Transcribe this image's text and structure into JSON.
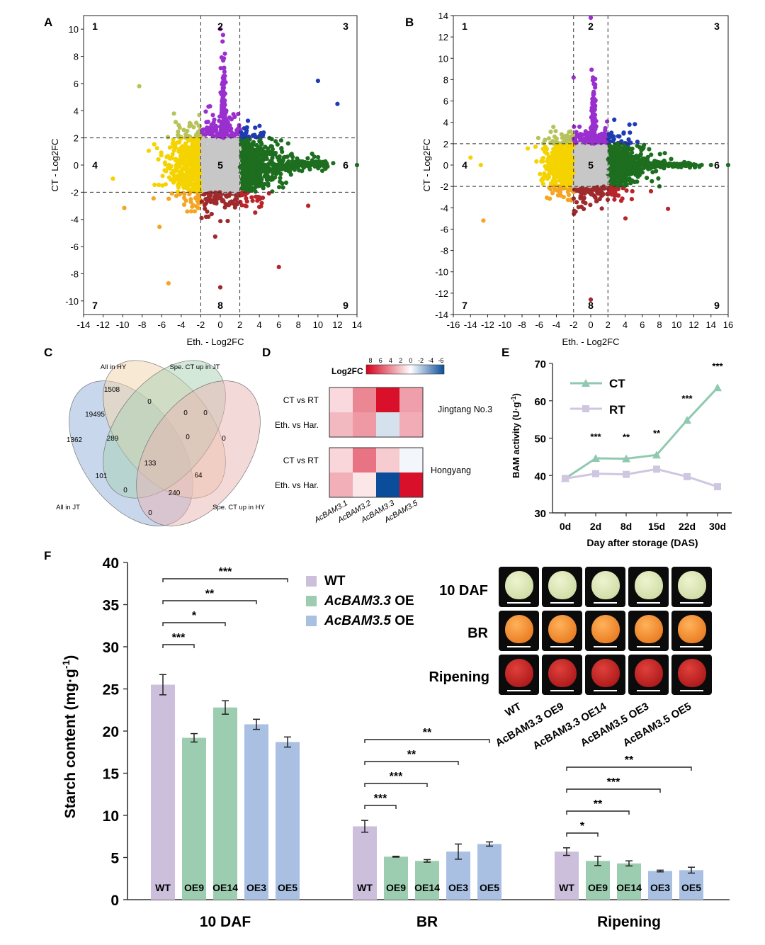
{
  "panel_labels": {
    "a": "A",
    "b": "B",
    "c": "C",
    "d": "D",
    "e": "E",
    "f": "F"
  },
  "scatter": {
    "xlabel": "Eth. - Log2FC",
    "ylabel": "CT - Log2FC",
    "quadrants": [
      "1",
      "2",
      "3",
      "4",
      "5",
      "6",
      "7",
      "8",
      "9"
    ],
    "A": {
      "xticks": [
        "-14",
        "-12",
        "-10",
        "-8",
        "-6",
        "-4",
        "-2",
        "0",
        "2",
        "4",
        "6",
        "8",
        "10",
        "12",
        "14"
      ],
      "yticks": [
        "10",
        "8",
        "6",
        "4",
        "2",
        "0",
        "-2",
        "-4",
        "-6",
        "-8",
        "-10"
      ]
    },
    "B": {
      "xticks": [
        "-16",
        "-14",
        "-12",
        "-10",
        "-8",
        "-6",
        "-4",
        "-2",
        "0",
        "2",
        "4",
        "6",
        "8",
        "10",
        "12",
        "14",
        "16"
      ],
      "yticks": [
        "14",
        "12",
        "10",
        "8",
        "6",
        "4",
        "2",
        "0",
        "-2",
        "-4",
        "-6",
        "-8",
        "-10",
        "-12",
        "-14"
      ]
    },
    "colors": {
      "q1": "#b7c35a",
      "q2": "#9a2fcf",
      "q3": "#1e3bb3",
      "q4": "#f5d300",
      "q5": "#c7c7c7",
      "q6": "#1d6e1f",
      "q7": "#f4a522",
      "q8": "#9e2a2c",
      "q9": "#b8252a"
    }
  },
  "venn": {
    "labels": {
      "hy": "All in HY",
      "jt_up": "Spe. CT up in JT",
      "jt": "All in JT",
      "hy_up": "Spe. CT up in HY"
    },
    "counts": [
      "1508",
      "0",
      "19495",
      "0",
      "0",
      "1362",
      "289",
      "0",
      "0",
      "133",
      "101",
      "64",
      "0",
      "240",
      "0"
    ],
    "colors": {
      "jt": "#9cb7dd",
      "hy": "#f3d7b0",
      "jt_up": "#a8d2b4",
      "hy_up": "#e9b3b3"
    }
  },
  "heatmap": {
    "legend_title": "Log2FC",
    "legend_ticks": [
      "8",
      "6",
      "4",
      "2",
      "0",
      "-2",
      "-4",
      "-6"
    ],
    "rows": [
      "CT vs RT",
      "Eth. vs Har.",
      "CT vs RT",
      "Eth. vs Har."
    ],
    "groups": [
      "Jingtang No.3",
      "Hongyang"
    ],
    "columns": [
      "AcBAM3.1",
      "AcBAM3.2",
      "AcBAM3.3",
      "AcBAM3.5"
    ],
    "values": [
      [
        1.2,
        3.8,
        7.5,
        3.0
      ],
      [
        2.2,
        3.2,
        -1.0,
        2.6
      ],
      [
        1.3,
        4.4,
        1.6,
        -0.3
      ],
      [
        2.5,
        0.8,
        -6.0,
        7.5
      ]
    ]
  },
  "line": {
    "ylabel": "BAM  activity (U·g",
    "ylabel_sup": "-1",
    "ylabel_close": ")",
    "xlabel": "Day after storage (DAS)",
    "stars": [
      "***",
      "**",
      "**",
      "***",
      "***"
    ]
  },
  "photos": {
    "stage_labels": [
      "10 DAF",
      "BR",
      "Ripening"
    ],
    "genotypes": [
      "WT",
      "AcBAM3.3 OE9",
      "AcBAM3.3 OE14",
      "AcBAM3.5 OE3",
      "AcBAM3.5 OE5"
    ]
  },
  "bar": {
    "ylabel": "Starch content (mg·g",
    "ylabel_sup": "-1",
    "ylabel_close": ")",
    "legend": [
      {
        "name": "WT",
        "italic": "",
        "tail": ""
      },
      {
        "name": "",
        "italic": "AcBAM3.3",
        "tail": " OE"
      },
      {
        "name": "",
        "italic": "AcBAM3.5",
        "tail": " OE"
      }
    ],
    "yticks": [
      "40",
      "35",
      "30",
      "25",
      "20",
      "15",
      "10",
      "5",
      "0"
    ],
    "bar_labels": [
      "WT",
      "OE9",
      "OE14",
      "OE3",
      "OE5"
    ],
    "group_colors": [
      "#cbbfdb",
      "#9dcdb0",
      "#a9c0e3"
    ]
  },
  "chart_data": [
    {
      "type": "scatter",
      "panel": "A",
      "x_range": [
        -14,
        14
      ],
      "y_range": [
        -11,
        11
      ],
      "thresholds": [
        -2,
        2
      ],
      "xlabel": "Eth. - Log2FC",
      "ylabel": "CT - Log2FC"
    },
    {
      "type": "scatter",
      "panel": "B",
      "x_range": [
        -16,
        16
      ],
      "y_range": [
        -14,
        14
      ],
      "thresholds": [
        -2,
        2
      ],
      "xlabel": "Eth. - Log2FC",
      "ylabel": "CT - Log2FC"
    },
    {
      "type": "heatmap",
      "panel": "D",
      "rows": [
        "CT vs RT",
        "Eth. vs Har.",
        "CT vs RT",
        "Eth. vs Har."
      ],
      "columns": [
        "AcBAM3.1",
        "AcBAM3.2",
        "AcBAM3.3",
        "AcBAM3.5"
      ],
      "values": [
        [
          1.2,
          3.8,
          7.5,
          3.0
        ],
        [
          2.2,
          3.2,
          -1.0,
          2.6
        ],
        [
          1.3,
          4.4,
          1.6,
          -0.3
        ],
        [
          2.5,
          0.8,
          -6.0,
          7.5
        ]
      ],
      "range": [
        8,
        -6
      ]
    },
    {
      "type": "line",
      "panel": "E",
      "categories": [
        "0d",
        "2d",
        "8d",
        "15d",
        "22d",
        "30d"
      ],
      "ylim": [
        30,
        70
      ],
      "yticks": [
        "70",
        "60",
        "50",
        "40",
        "30"
      ],
      "series": [
        {
          "name": "CT",
          "values": [
            39.2,
            44.6,
            44.5,
            45.5,
            54.8,
            63.5
          ]
        },
        {
          "name": "RT",
          "values": [
            39.2,
            40.5,
            40.3,
            41.7,
            39.7,
            37.0
          ]
        }
      ],
      "xlabel": "Day after storage (DAS)"
    },
    {
      "type": "bar",
      "panel": "F",
      "ylim": [
        0,
        40
      ],
      "groups": [
        "10 DAF",
        "BR",
        "Ripening"
      ],
      "categories": [
        "WT",
        "OE9",
        "OE14",
        "OE3",
        "OE5"
      ],
      "values": [
        [
          25.5,
          19.2,
          22.8,
          20.8,
          18.7
        ],
        [
          8.7,
          5.1,
          4.6,
          5.7,
          6.6
        ],
        [
          5.7,
          4.6,
          4.3,
          3.4,
          3.5
        ]
      ],
      "errors": [
        [
          1.2,
          0.5,
          0.8,
          0.6,
          0.6
        ],
        [
          0.7,
          0.05,
          0.15,
          0.9,
          0.25
        ],
        [
          0.45,
          0.55,
          0.3,
          0.1,
          0.35
        ]
      ],
      "significance": [
        [
          "***",
          "*",
          "**",
          "***"
        ],
        [
          "***",
          "***",
          "**",
          "**"
        ],
        [
          "*",
          "**",
          "***",
          "**"
        ]
      ]
    }
  ]
}
